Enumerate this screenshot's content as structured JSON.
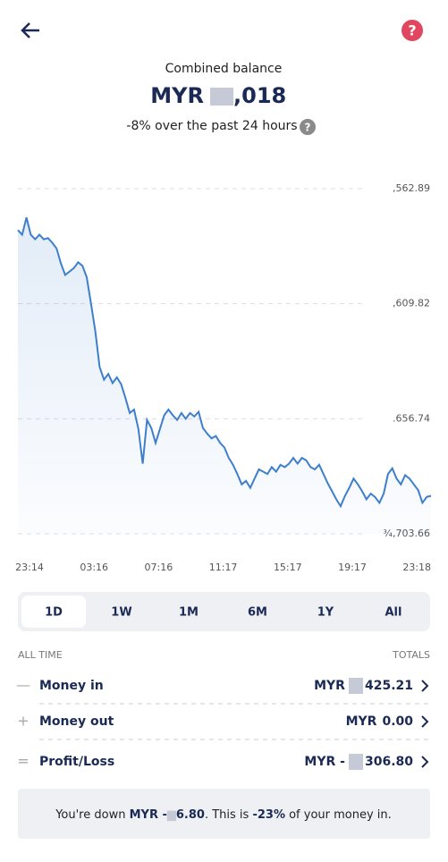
{
  "header": {
    "title": "Combined balance",
    "balance_currency": "MYR",
    "balance_visible": ",018",
    "change": "-8% over the past 24 hours"
  },
  "chart": {
    "type": "line",
    "color": "#3d7fcc",
    "ylim": [
      0,
      3
    ],
    "yticks": [
      {
        "value": 3,
        "label": ",562.89"
      },
      {
        "value": 2,
        "label": ",609.82"
      },
      {
        "value": 1,
        "label": ".656.74"
      },
      {
        "value": 0,
        "label": "¾,703.66"
      }
    ],
    "x_labels": [
      "23:14",
      "03:16",
      "07:16",
      "11:17",
      "15:17",
      "19:17",
      "23:18"
    ],
    "values": [
      2.64,
      2.6,
      2.75,
      2.6,
      2.56,
      2.6,
      2.56,
      2.57,
      2.53,
      2.48,
      2.35,
      2.25,
      2.28,
      2.31,
      2.36,
      2.33,
      2.23,
      2.0,
      1.76,
      1.45,
      1.34,
      1.39,
      1.31,
      1.36,
      1.3,
      1.18,
      1.05,
      1.08,
      0.91,
      0.61,
      0.99,
      0.92,
      0.79,
      0.91,
      1.03,
      1.08,
      1.03,
      0.99,
      1.05,
      1.0,
      1.05,
      1.02,
      1.06,
      0.92,
      0.87,
      0.83,
      0.85,
      0.79,
      0.75,
      0.66,
      0.6,
      0.52,
      0.43,
      0.46,
      0.4,
      0.48,
      0.56,
      0.54,
      0.52,
      0.58,
      0.54,
      0.6,
      0.58,
      0.61,
      0.66,
      0.61,
      0.66,
      0.64,
      0.58,
      0.56,
      0.6,
      0.52,
      0.44,
      0.37,
      0.3,
      0.24,
      0.33,
      0.4,
      0.48,
      0.43,
      0.37,
      0.3,
      0.35,
      0.32,
      0.27,
      0.35,
      0.52,
      0.57,
      0.48,
      0.43,
      0.51,
      0.48,
      0.43,
      0.38,
      0.27,
      0.32,
      0.33
    ]
  },
  "tabs": [
    "1D",
    "1W",
    "1M",
    "6M",
    "1Y",
    "All"
  ],
  "totals": {
    "left_header": "ALL TIME",
    "right_header": "TOTALS",
    "rows": [
      {
        "sign": "—",
        "label": "Money in",
        "currency": "MYR",
        "amount": "425.21"
      },
      {
        "sign": "+",
        "label": "Money out",
        "currency": "MYR",
        "amount": "0.00"
      },
      {
        "sign": "=",
        "label": "Profit/Loss",
        "currency": "MYR -",
        "amount": "306.80"
      }
    ]
  },
  "footer": {
    "part1": "You're down ",
    "bold1": "MYR -",
    "bold1b": "6.80",
    "part2": ". This is ",
    "bold2": "-23%",
    "part3": " of your money in."
  }
}
